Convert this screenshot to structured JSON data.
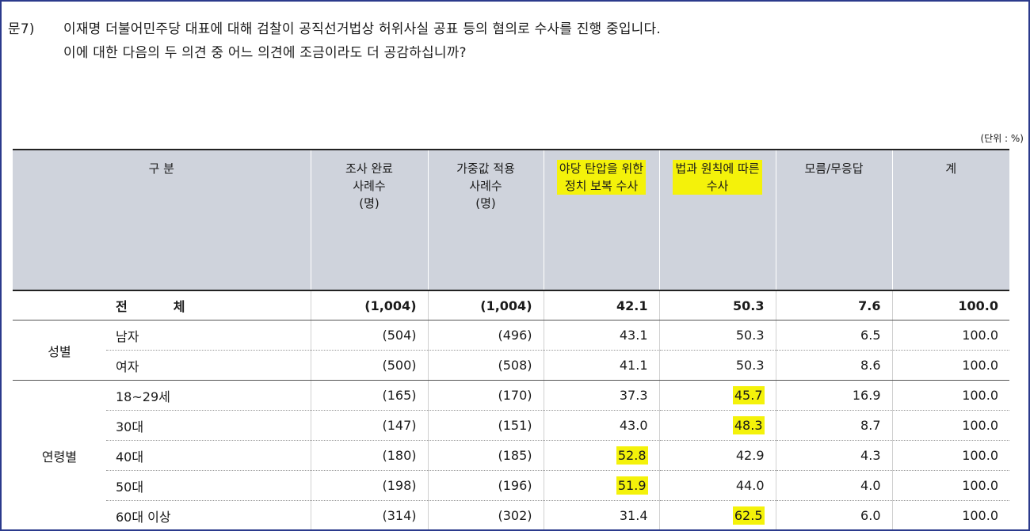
{
  "question": {
    "number": "문7)",
    "line1": "이재명 더불어민주당 대표에 대해 검찰이 공직선거법상 허위사실 공표 등의 혐의로 수사를 진행 중입니다.",
    "line2": "이에 대한 다음의 두 의견 중 어느 의견에 조금이라도 더 공감하십니까?"
  },
  "unit": "(단위 : %)",
  "columns": [
    {
      "label": "구       분",
      "highlight": false
    },
    {
      "label": "조사 완료\n사례수\n(명)",
      "highlight": false
    },
    {
      "label": "가중값 적용\n사례수\n(명)",
      "highlight": false
    },
    {
      "label": "야당 탄압을 위한\n정치 보복 수사",
      "highlight": true
    },
    {
      "label": "법과 원칙에 따른\n수사",
      "highlight": true
    },
    {
      "label": "모름/무응답",
      "highlight": false
    },
    {
      "label": "계",
      "highlight": false
    }
  ],
  "total": {
    "label_a": "전",
    "label_b": "체",
    "values": [
      "(1,004)",
      "(1,004)",
      "42.1",
      "50.3",
      "7.6",
      "100.0"
    ]
  },
  "groups": [
    {
      "name": "성별",
      "rows": [
        {
          "label": "남자",
          "values": [
            "(504)",
            "(496)",
            "43.1",
            "50.3",
            "6.5",
            "100.0"
          ],
          "highlight": [
            false,
            false,
            false,
            false,
            false,
            false
          ]
        },
        {
          "label": "여자",
          "values": [
            "(500)",
            "(508)",
            "41.1",
            "50.3",
            "8.6",
            "100.0"
          ],
          "highlight": [
            false,
            false,
            false,
            false,
            false,
            false
          ]
        }
      ]
    },
    {
      "name": "연령별",
      "rows": [
        {
          "label": "18~29세",
          "values": [
            "(165)",
            "(170)",
            "37.3",
            "45.7",
            "16.9",
            "100.0"
          ],
          "highlight": [
            false,
            false,
            false,
            true,
            false,
            false
          ]
        },
        {
          "label": "30대",
          "values": [
            "(147)",
            "(151)",
            "43.0",
            "48.3",
            "8.7",
            "100.0"
          ],
          "highlight": [
            false,
            false,
            false,
            true,
            false,
            false
          ]
        },
        {
          "label": "40대",
          "values": [
            "(180)",
            "(185)",
            "52.8",
            "42.9",
            "4.3",
            "100.0"
          ],
          "highlight": [
            false,
            false,
            true,
            false,
            false,
            false
          ]
        },
        {
          "label": "50대",
          "values": [
            "(198)",
            "(196)",
            "51.9",
            "44.0",
            "4.0",
            "100.0"
          ],
          "highlight": [
            false,
            false,
            true,
            false,
            false,
            false
          ]
        },
        {
          "label": "60대 이상",
          "values": [
            "(314)",
            "(302)",
            "31.4",
            "62.5",
            "6.0",
            "100.0"
          ],
          "highlight": [
            false,
            false,
            false,
            true,
            false,
            false
          ]
        }
      ]
    }
  ],
  "colors": {
    "highlight": "#f4f20a",
    "header_bg": "#cfd3dc",
    "frame_border": "#2b3a8c"
  }
}
